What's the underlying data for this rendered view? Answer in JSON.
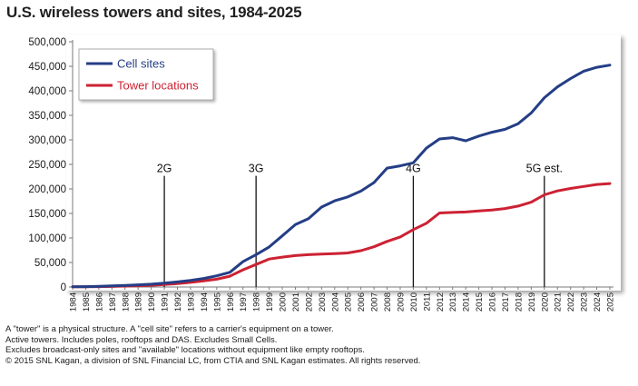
{
  "title": "U.S. wireless towers and sites, 1984-2025",
  "chart_data": {
    "type": "line",
    "title": "U.S. wireless towers and sites, 1984-2025",
    "x": [
      1984,
      1985,
      1986,
      1987,
      1988,
      1989,
      1990,
      1991,
      1992,
      1993,
      1994,
      1995,
      1996,
      1997,
      1998,
      1999,
      2000,
      2001,
      2002,
      2003,
      2004,
      2005,
      2006,
      2007,
      2008,
      2009,
      2010,
      2011,
      2012,
      2013,
      2014,
      2015,
      2016,
      2017,
      2018,
      2019,
      2020,
      2021,
      2022,
      2023,
      2024,
      2025
    ],
    "x_tick_labels": [
      "1984",
      "1985",
      "1986",
      "1987",
      "1988",
      "1989",
      "1990",
      "1991",
      "1992",
      "1993",
      "1994",
      "1995",
      "1996",
      "1997",
      "1998",
      "1999",
      "2000",
      "2001",
      "2002",
      "2003",
      "2004",
      "2005",
      "2006",
      "2007",
      "2008",
      "2009",
      "2010",
      "2011",
      "2012",
      "2013",
      "2014",
      "2015",
      "2016",
      "2017",
      "2018",
      "2019",
      "2020",
      "2021",
      "2022",
      "2023",
      "2024",
      "2025"
    ],
    "y_tick_labels": [
      "0",
      "50,000",
      "100,000",
      "150,000",
      "200,000",
      "250,000",
      "300,000",
      "350,000",
      "400,000",
      "450,000",
      "500,000"
    ],
    "ylim": [
      0,
      500000
    ],
    "grid": false,
    "legend_position": "top-left",
    "series": [
      {
        "name": "Cell sites",
        "color": "#243e86",
        "values": [
          500,
          800,
          1500,
          2300,
          3200,
          4500,
          5700,
          7800,
          10300,
          13500,
          17500,
          22700,
          30000,
          51600,
          65900,
          81700,
          104300,
          127500,
          139300,
          162900,
          175700,
          183700,
          195500,
          213000,
          242500,
          247100,
          253100,
          283400,
          301800,
          304400,
          298100,
          307700,
          315600,
          321500,
          333000,
          355000,
          386000,
          408000,
          425000,
          440000,
          448000,
          452500
        ]
      },
      {
        "name": "Tower locations",
        "color": "#cc2233",
        "values": [
          300,
          500,
          800,
          1200,
          1800,
          2500,
          3500,
          5000,
          7000,
          9500,
          12500,
          16000,
          22000,
          35000,
          46000,
          57000,
          61000,
          64000,
          66000,
          67000,
          68000,
          69500,
          74000,
          82000,
          93000,
          102000,
          117000,
          130000,
          151000,
          152000,
          153000,
          155000,
          157000,
          160000,
          165000,
          173000,
          188000,
          196000,
          201000,
          205000,
          209000,
          211000
        ]
      }
    ],
    "annotations": [
      {
        "label": "2G",
        "x": 1991,
        "label_y": 234000
      },
      {
        "label": "3G",
        "x": 1998,
        "label_y": 234000
      },
      {
        "label": "4G",
        "x": 2010,
        "label_y": 234000
      },
      {
        "label": "5G est.",
        "x": 2020,
        "label_y": 234000
      }
    ]
  },
  "notes": [
    "A \"tower\" is a physical structure.  A \"cell site\" refers to a carrier's equipment on a tower.",
    "Active towers.  Includes poles, rooftops and DAS.  Excludes Small Cells.",
    "Excludes broadcast-only sites and \"available\" locations without equipment like empty rooftops.",
    "© 2015 SNL Kagan, a division of SNL Financial LC, from CTIA and SNL Kagan estimates. All rights reserved."
  ]
}
